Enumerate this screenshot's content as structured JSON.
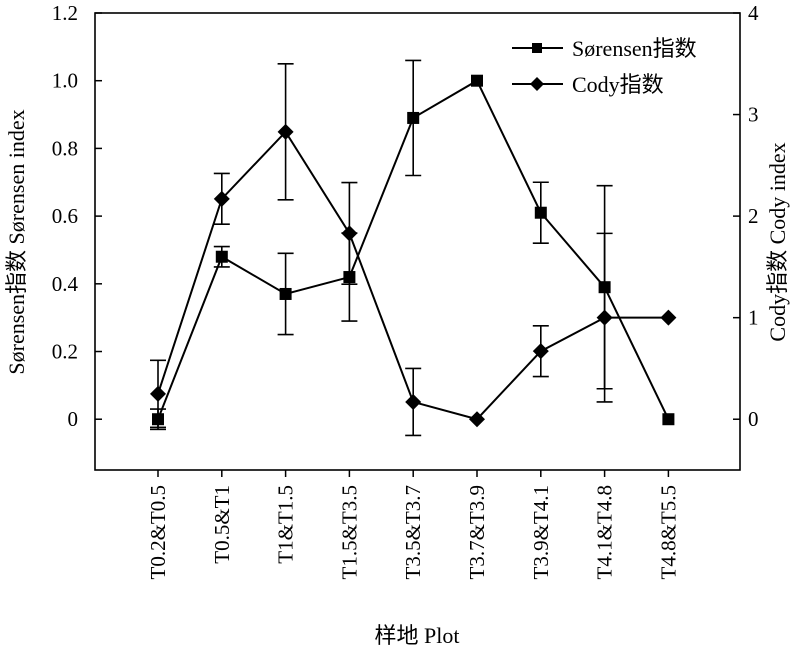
{
  "chart_data": {
    "type": "line",
    "xlabel": "样地 Plot",
    "ylabel_left": "Sørensen指数 Sørensen index",
    "ylabel_right": "Cody指数 Cody index",
    "categories": [
      "T0.2&T0.5",
      "T0.5&T1",
      "T1&T1.5",
      "T1.5&T3.5",
      "T3.5&T3.7",
      "T3.7&T3.9",
      "T3.9&T4.1",
      "T4.1&T4.8",
      "T4.8&T5.5"
    ],
    "y_left": {
      "ylim": [
        -0.15,
        1.2
      ],
      "ticks": [
        0,
        0.2,
        0.4,
        0.6,
        0.8,
        1.0,
        1.2
      ],
      "tick_labels": [
        "0",
        "0.2",
        "0.4",
        "0.6",
        "0.8",
        "1.0",
        "1.2"
      ]
    },
    "y_right": {
      "ylim": [
        -0.5,
        4
      ],
      "ticks": [
        0,
        1,
        2,
        3,
        4
      ],
      "tick_labels": [
        "0",
        "1",
        "2",
        "3",
        "4"
      ]
    },
    "grid": false,
    "legend_position": "top-right",
    "series": [
      {
        "name": "Sørensen指数",
        "axis": "left",
        "marker": "square",
        "values": [
          0,
          0.48,
          0.37,
          0.42,
          0.89,
          1.0,
          0.61,
          0.39,
          0
        ],
        "error": [
          0.03,
          0.03,
          0.12,
          0.13,
          0.17,
          0,
          0.09,
          0.3,
          0
        ]
      },
      {
        "name": "Cody指数",
        "axis": "right",
        "marker": "diamond",
        "values": [
          0.25,
          2.17,
          2.83,
          1.83,
          0.17,
          0,
          0.67,
          1.0,
          1.0
        ],
        "error": [
          0.33,
          0.25,
          0.67,
          0.5,
          0.33,
          0,
          0.25,
          0.83,
          0
        ]
      }
    ]
  }
}
